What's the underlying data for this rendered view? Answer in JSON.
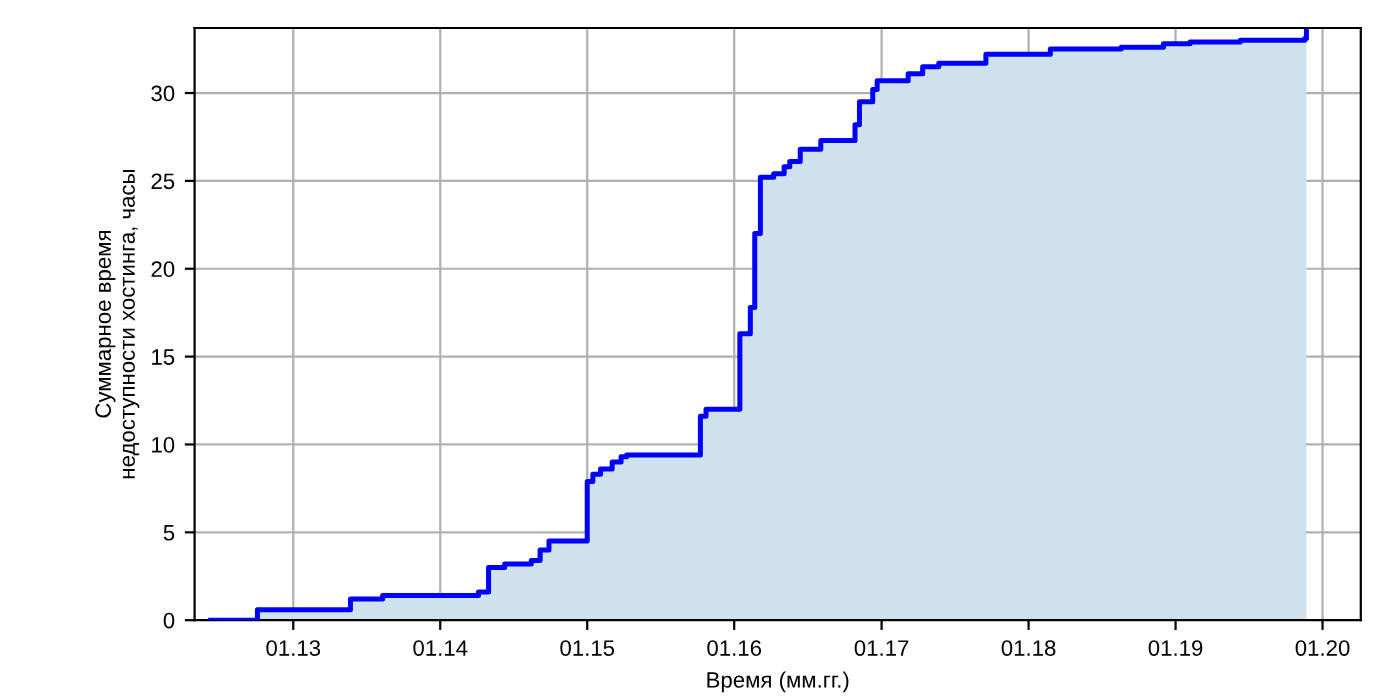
{
  "chart_data": {
    "type": "step",
    "xlabel": "Время (мм.гг.)",
    "ylabel": "Суммарное время\nнедоступности хостинга, часы",
    "x": [
      "2012-06-10",
      "2012-10-04",
      "2013-05-23",
      "2013-08-11",
      "2014-04-06",
      "2014-05-01",
      "2014-06-10",
      "2014-08-15",
      "2014-09-06",
      "2014-09-28",
      "2015-01-01",
      "2015-01-15",
      "2015-02-03",
      "2015-03-04",
      "2015-03-26",
      "2015-04-09",
      "2015-10-09",
      "2015-10-23",
      "2016-01-15",
      "2016-02-10",
      "2016-02-21",
      "2016-03-06",
      "2016-04-08",
      "2016-05-04",
      "2016-05-18",
      "2016-06-13",
      "2016-08-03",
      "2016-10-27",
      "2016-11-07",
      "2016-12-10",
      "2016-12-21",
      "2017-03-08",
      "2017-04-13",
      "2017-05-23",
      "2017-09-17",
      "2018-02-24",
      "2018-08-19",
      "2018-12-02",
      "2019-02-06",
      "2019-06-11",
      "2019-11-18",
      "2019-11-22"
    ],
    "series": [
      {
        "color": "#0000ff",
        "values": [
          0,
          0.6,
          1.2,
          1.4,
          1.6,
          3.0,
          3.2,
          3.4,
          4.0,
          4.5,
          7.9,
          8.3,
          8.6,
          9.0,
          9.3,
          9.4,
          11.6,
          12.0,
          16.3,
          17.8,
          22.0,
          25.2,
          25.4,
          25.8,
          26.1,
          26.8,
          27.3,
          28.2,
          29.5,
          30.2,
          30.7,
          31.1,
          31.5,
          31.7,
          32.2,
          32.5,
          32.6,
          32.8,
          32.9,
          33.0,
          33.1,
          33.5
        ]
      }
    ],
    "xlim": [
      "2012-05-01",
      "2020-04-05"
    ],
    "ylim": [
      0,
      33.7
    ],
    "xticks": [
      {
        "value": "2013-01",
        "label": "01.13"
      },
      {
        "value": "2014-01",
        "label": "01.14"
      },
      {
        "value": "2015-01",
        "label": "01.15"
      },
      {
        "value": "2016-01",
        "label": "01.16"
      },
      {
        "value": "2017-01",
        "label": "01.17"
      },
      {
        "value": "2018-01",
        "label": "01.18"
      },
      {
        "value": "2019-01",
        "label": "01.19"
      },
      {
        "value": "2020-01",
        "label": "01.20"
      }
    ],
    "yticks": [
      0,
      5,
      10,
      15,
      20,
      25,
      30
    ],
    "grid": true
  }
}
